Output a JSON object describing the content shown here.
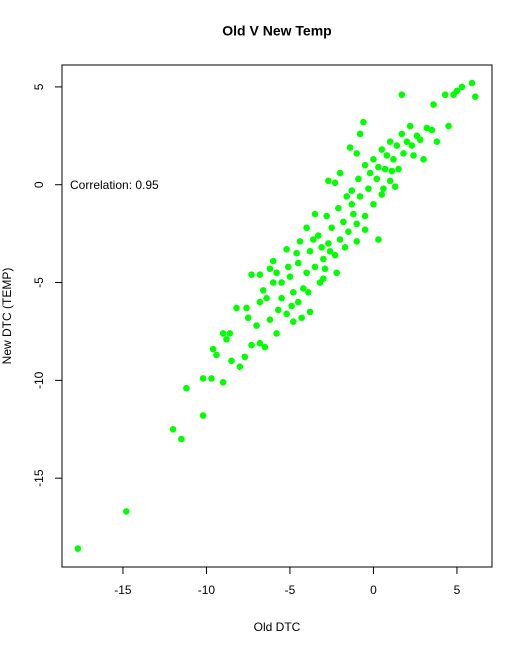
{
  "chart_data": {
    "type": "scatter",
    "title": "Old V New Temp",
    "x_label": "Old DTC",
    "y_label": "New DTC (TEMP)",
    "annotation": "Correlation: 0.95",
    "color": "#00ff00",
    "grid": false,
    "xlim": [
      -18.65,
      7.1
    ],
    "ylim": [
      -19.54,
      6.12
    ],
    "xticks": [
      -15,
      -10,
      -5,
      0,
      5
    ],
    "yticks": [
      -15,
      -10,
      -5,
      0,
      5
    ],
    "x": [
      -17.7,
      -14.8,
      -11.5,
      -12,
      -10.2,
      -11.2,
      -10.2,
      -9.7,
      -9.0,
      -9.6,
      -9.4,
      -9.0,
      -8.6,
      -8.5,
      -8.0,
      -7.7,
      -7.3,
      -6.8,
      -6.5,
      -7.0,
      -7.6,
      -8.2,
      -6.8,
      -6.4,
      -6.2,
      -5.7,
      -5.2,
      -4.8,
      -5.5,
      -6.8,
      -7.3,
      -6.2,
      -5.8,
      -5.0,
      -4.8,
      -4.5,
      -4.2,
      -4.0,
      -4.6,
      -5.2,
      -3.8,
      -3.5,
      -3.2,
      -3.0,
      -2.7,
      -3.3,
      -2.5,
      -2.9,
      -2.3,
      -2.0,
      -1.8,
      -2.1,
      -1.5,
      -1.3,
      -1.0,
      -0.8,
      -0.5,
      -0.3,
      0,
      0.2,
      0.5,
      0.7,
      1.0,
      1.2,
      1.5,
      1.8,
      2.0,
      2.3,
      1.7,
      2.2,
      1.0,
      0.5,
      0,
      -0.5,
      -1.0,
      -1.4,
      -2.0,
      -2.7,
      -1.3,
      -0.8,
      -0.6,
      1.7,
      3.2,
      3.5,
      3.6,
      4.5,
      4.3,
      4.8,
      5.0,
      5.3,
      5.9,
      6.1,
      3.8,
      2.8,
      -3.5,
      -4.0,
      -2.2,
      -1.0,
      0.3,
      -3.8,
      -5.5,
      -6.0,
      -4.5,
      -3.6,
      -2.8,
      -1.6,
      -0.2,
      0.8,
      1.4,
      -3.0,
      -4.3,
      -5.8,
      -7.5,
      -8.8,
      -6.0,
      -2.3,
      -0.5,
      0.6,
      1.3,
      -1.7,
      -2.6,
      -3.9,
      -4.9,
      -5.1,
      -1.2,
      0.3,
      1.1,
      2.4,
      -6.6,
      -4.4,
      -3.1,
      2.6,
      3.0,
      -0.9
    ],
    "y": [
      -18.6,
      -16.7,
      -13,
      -12.5,
      -11.8,
      -10.4,
      -9.9,
      -9.9,
      -10.1,
      -8.4,
      -8.7,
      -7.6,
      -7.6,
      -9.0,
      -9.3,
      -8.8,
      -8.2,
      -8.1,
      -8.3,
      -7.2,
      -6.3,
      -6.3,
      -6.0,
      -5.8,
      -6.9,
      -6.4,
      -6.6,
      -7.0,
      -5.0,
      -4.6,
      -4.6,
      -4.3,
      -4.5,
      -4.7,
      -5.5,
      -6.0,
      -5.3,
      -4.5,
      -3.5,
      -3.3,
      -3.4,
      -4.2,
      -5.0,
      -3.8,
      -3.0,
      -2.6,
      -2.2,
      -4.3,
      -3.6,
      -2.8,
      -1.9,
      -1.2,
      -2.4,
      -1.0,
      -2.0,
      -0.6,
      -1.6,
      -0.2,
      -1.0,
      0.3,
      -0.5,
      0.8,
      0.2,
      1.3,
      0.8,
      1.6,
      2.2,
      2.0,
      2.6,
      3.0,
      2.2,
      1.8,
      1.3,
      1.0,
      1.6,
      1.9,
      0.6,
      0.2,
      -0.3,
      2.6,
      3.2,
      4.6,
      2.9,
      2.8,
      4.1,
      3.0,
      4.6,
      4.6,
      4.8,
      5.0,
      5.2,
      4.5,
      2.2,
      2.3,
      -1.5,
      -2.2,
      -4.5,
      -2.9,
      -2.8,
      -6.5,
      -5.8,
      -5.0,
      -4.0,
      -2.8,
      -1.6,
      -0.6,
      0.6,
      1.5,
      2.0,
      -4.8,
      -6.8,
      -7.6,
      -6.8,
      -7.9,
      -3.9,
      0.1,
      -2.3,
      -0.2,
      -0.1,
      -3.2,
      -3.4,
      -5.5,
      -6.2,
      -4.2,
      -1.5,
      0.9,
      0.7,
      1.5,
      -5.4,
      -2.9,
      -3.2,
      2.5,
      1.3,
      0.3
    ]
  }
}
